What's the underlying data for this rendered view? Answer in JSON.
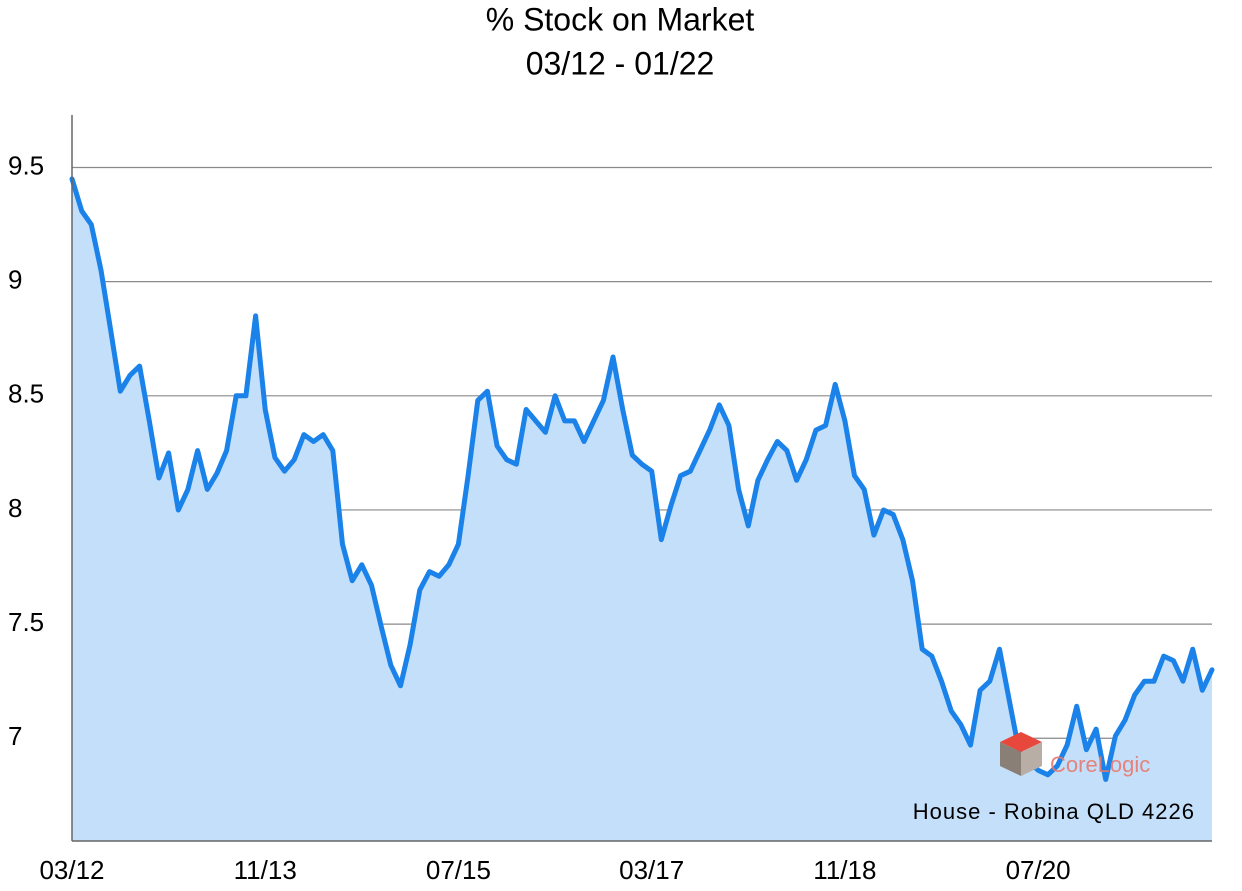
{
  "chart_data": {
    "type": "area-line",
    "title": "% Stock on Market",
    "subtitle": "03/12 - 01/22",
    "categories": [
      "03/12",
      null,
      null,
      null,
      null,
      null,
      null,
      null,
      null,
      null,
      null,
      null,
      null,
      null,
      null,
      null,
      null,
      null,
      null,
      null,
      "11/13",
      null,
      null,
      null,
      null,
      null,
      null,
      null,
      null,
      null,
      null,
      null,
      null,
      null,
      null,
      null,
      null,
      null,
      null,
      null,
      "07/15",
      null,
      null,
      null,
      null,
      null,
      null,
      null,
      null,
      null,
      null,
      null,
      null,
      null,
      null,
      null,
      null,
      null,
      null,
      null,
      "03/17",
      null,
      null,
      null,
      null,
      null,
      null,
      null,
      null,
      null,
      null,
      null,
      null,
      null,
      null,
      null,
      null,
      null,
      null,
      null,
      "11/18",
      null,
      null,
      null,
      null,
      null,
      null,
      null,
      null,
      null,
      null,
      null,
      null,
      null,
      null,
      null,
      null,
      null,
      null,
      null,
      "07/20",
      null,
      null,
      null,
      null,
      null,
      null,
      null,
      null,
      null,
      null,
      null,
      null,
      null,
      null,
      null,
      null,
      null,
      null
    ],
    "values": [
      9.45,
      9.31,
      9.25,
      9.05,
      8.79,
      8.52,
      8.59,
      8.63,
      8.39,
      8.14,
      8.25,
      8.0,
      8.09,
      8.26,
      8.09,
      8.16,
      8.26,
      8.5,
      8.5,
      8.85,
      8.44,
      8.23,
      8.17,
      8.22,
      8.33,
      8.3,
      8.33,
      8.26,
      7.85,
      7.69,
      7.76,
      7.67,
      7.49,
      7.32,
      7.23,
      7.41,
      7.65,
      7.73,
      7.71,
      7.76,
      7.85,
      8.15,
      8.48,
      8.52,
      8.28,
      8.22,
      8.2,
      8.44,
      8.39,
      8.34,
      8.5,
      8.39,
      8.39,
      8.3,
      8.39,
      8.48,
      8.67,
      8.44,
      8.24,
      8.2,
      8.17,
      7.87,
      8.02,
      8.15,
      8.17,
      8.26,
      8.35,
      8.46,
      8.37,
      8.09,
      7.93,
      8.13,
      8.22,
      8.3,
      8.26,
      8.13,
      8.22,
      8.35,
      8.37,
      8.55,
      8.39,
      8.15,
      8.09,
      7.89,
      8.0,
      7.98,
      7.87,
      7.69,
      7.39,
      7.36,
      7.25,
      7.12,
      7.06,
      6.97,
      7.21,
      7.25,
      7.39,
      7.17,
      6.95,
      6.9,
      6.86,
      6.84,
      6.88,
      6.97,
      7.14,
      6.95,
      7.04,
      6.82,
      7.01,
      7.08,
      7.19,
      7.25,
      7.25,
      7.36,
      7.34,
      7.25,
      7.39,
      7.21,
      7.3
    ],
    "color": "#1a82e8",
    "fill_color": "#c3dffa",
    "ylim": [
      6.55,
      9.73
    ],
    "yticks": [
      7,
      7.5,
      8,
      8.5,
      9,
      9.5
    ],
    "grid": true,
    "annotation": "House - Robina QLD 4226",
    "watermark": "CoreLogic"
  }
}
